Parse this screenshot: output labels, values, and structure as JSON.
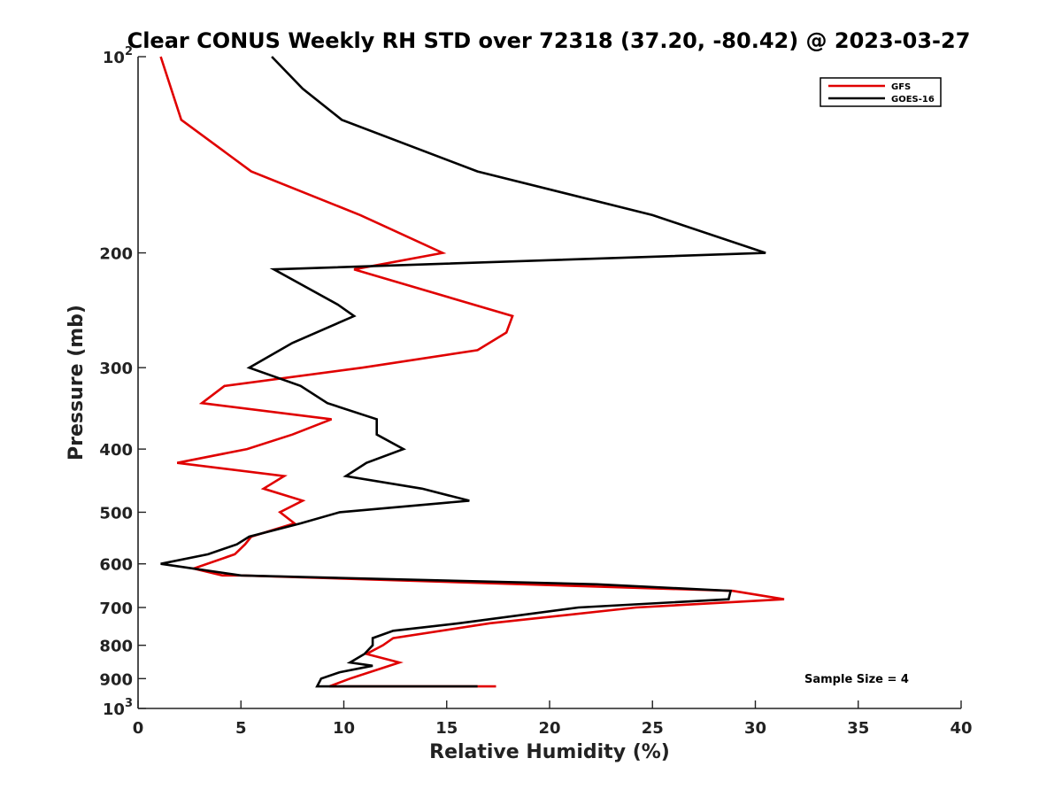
{
  "chart_data": {
    "type": "line",
    "title": "Clear CONUS Weekly RH STD over 72318 (37.20, -80.42) @ 2023-03-27",
    "xlabel": "Relative Humidity (%)",
    "ylabel": "Pressure (mb)",
    "xlim": [
      0,
      40
    ],
    "ylim": [
      100,
      1000
    ],
    "y_scale": "log",
    "y_reversed": true,
    "grid": false,
    "legend_position": "top-right",
    "x_ticks": [
      0,
      5,
      10,
      15,
      20,
      25,
      30,
      35,
      40
    ],
    "y_ticks": [
      {
        "value": 100,
        "base": "10",
        "exp": "2"
      },
      {
        "value": 200,
        "label": "200"
      },
      {
        "value": 300,
        "label": "300"
      },
      {
        "value": 400,
        "label": "400"
      },
      {
        "value": 500,
        "label": "500"
      },
      {
        "value": 600,
        "label": "600"
      },
      {
        "value": 700,
        "label": "700"
      },
      {
        "value": 800,
        "label": "800"
      },
      {
        "value": 900,
        "label": "900"
      },
      {
        "value": 1000,
        "base": "10",
        "exp": "3"
      }
    ],
    "series": [
      {
        "name": "GFS",
        "color": "#e00000",
        "points": [
          [
            1.1,
            100
          ],
          [
            2.1,
            125
          ],
          [
            5.5,
            150
          ],
          [
            10.8,
            175
          ],
          [
            14.8,
            200
          ],
          [
            10.5,
            212
          ],
          [
            18.2,
            250
          ],
          [
            17.9,
            265
          ],
          [
            16.5,
            282
          ],
          [
            10.9,
            300
          ],
          [
            4.2,
            320
          ],
          [
            3.1,
            340
          ],
          [
            9.4,
            360
          ],
          [
            7.5,
            380
          ],
          [
            5.3,
            400
          ],
          [
            1.9,
            420
          ],
          [
            7.1,
            440
          ],
          [
            6.1,
            460
          ],
          [
            8.0,
            480
          ],
          [
            6.9,
            500
          ],
          [
            7.6,
            520
          ],
          [
            5.5,
            545
          ],
          [
            5.2,
            560
          ],
          [
            4.7,
            580
          ],
          [
            2.7,
            610
          ],
          [
            4.1,
            625
          ],
          [
            5.0,
            625
          ],
          [
            28.9,
            660
          ],
          [
            31.4,
            680
          ],
          [
            24.2,
            700
          ],
          [
            17.1,
            740
          ],
          [
            12.4,
            780
          ],
          [
            11.9,
            800
          ],
          [
            11.1,
            825
          ],
          [
            12.7,
            850
          ],
          [
            10.3,
            900
          ],
          [
            9.3,
            925
          ],
          [
            17.4,
            925
          ]
        ]
      },
      {
        "name": "GOES-16",
        "color": "#000000",
        "points": [
          [
            6.5,
            100
          ],
          [
            8.0,
            112
          ],
          [
            9.9,
            125
          ],
          [
            16.5,
            150
          ],
          [
            25.0,
            175
          ],
          [
            30.5,
            200
          ],
          [
            6.6,
            212
          ],
          [
            9.7,
            240
          ],
          [
            10.5,
            250
          ],
          [
            7.5,
            275
          ],
          [
            5.4,
            300
          ],
          [
            7.9,
            320
          ],
          [
            9.2,
            340
          ],
          [
            11.6,
            360
          ],
          [
            11.6,
            380
          ],
          [
            12.9,
            400
          ],
          [
            11.1,
            420
          ],
          [
            10.1,
            440
          ],
          [
            13.8,
            460
          ],
          [
            16.1,
            480
          ],
          [
            9.8,
            500
          ],
          [
            7.9,
            520
          ],
          [
            5.4,
            545
          ],
          [
            4.8,
            560
          ],
          [
            3.4,
            580
          ],
          [
            1.1,
            600
          ],
          [
            5.0,
            625
          ],
          [
            22.3,
            645
          ],
          [
            28.8,
            660
          ],
          [
            28.7,
            680
          ],
          [
            21.4,
            700
          ],
          [
            15.6,
            740
          ],
          [
            12.4,
            760
          ],
          [
            11.4,
            780
          ],
          [
            11.4,
            800
          ],
          [
            11.0,
            825
          ],
          [
            10.3,
            850
          ],
          [
            11.4,
            860
          ],
          [
            9.8,
            880
          ],
          [
            8.9,
            900
          ],
          [
            8.7,
            925
          ],
          [
            16.5,
            925
          ]
        ]
      }
    ],
    "annotations": {
      "sample_size": "Sample Size = 4"
    }
  }
}
